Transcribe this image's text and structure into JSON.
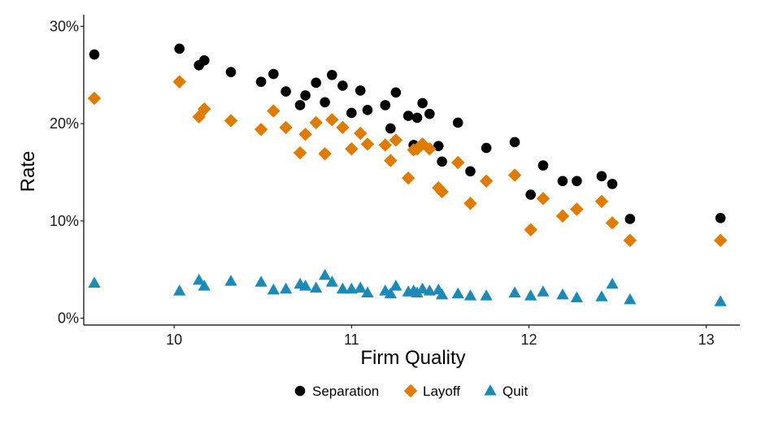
{
  "chart_data": {
    "type": "scatter",
    "xlabel": "Firm Quality",
    "ylabel": "Rate",
    "xlim": [
      9.55,
      13.13
    ],
    "ylim": [
      -0.007,
      0.312
    ],
    "xticks": [
      {
        "value": 10,
        "label": "10"
      },
      {
        "value": 11,
        "label": "11"
      },
      {
        "value": 12,
        "label": "12"
      },
      {
        "value": 13,
        "label": "13"
      }
    ],
    "yticks": [
      {
        "value": 0.0,
        "label": "0%"
      },
      {
        "value": 0.1,
        "label": "10%"
      },
      {
        "value": 0.2,
        "label": "20%"
      },
      {
        "value": 0.3,
        "label": "30%"
      }
    ],
    "grid": false,
    "legend_position": "bottom",
    "series": [
      {
        "name": "Separation",
        "marker": "circle",
        "color": "#000000",
        "points": [
          [
            9.55,
            0.271
          ],
          [
            10.03,
            0.277
          ],
          [
            10.14,
            0.26
          ],
          [
            10.17,
            0.265
          ],
          [
            10.32,
            0.253
          ],
          [
            10.49,
            0.243
          ],
          [
            10.56,
            0.251
          ],
          [
            10.63,
            0.233
          ],
          [
            10.71,
            0.219
          ],
          [
            10.74,
            0.229
          ],
          [
            10.8,
            0.242
          ],
          [
            10.85,
            0.222
          ],
          [
            10.89,
            0.25
          ],
          [
            10.95,
            0.239
          ],
          [
            11.0,
            0.211
          ],
          [
            11.05,
            0.234
          ],
          [
            11.09,
            0.214
          ],
          [
            11.19,
            0.219
          ],
          [
            11.22,
            0.195
          ],
          [
            11.25,
            0.232
          ],
          [
            11.32,
            0.208
          ],
          [
            11.35,
            0.178
          ],
          [
            11.37,
            0.206
          ],
          [
            11.4,
            0.221
          ],
          [
            11.44,
            0.21
          ],
          [
            11.49,
            0.177
          ],
          [
            11.51,
            0.161
          ],
          [
            11.6,
            0.201
          ],
          [
            11.67,
            0.151
          ],
          [
            11.76,
            0.175
          ],
          [
            11.92,
            0.181
          ],
          [
            12.01,
            0.127
          ],
          [
            12.08,
            0.157
          ],
          [
            12.19,
            0.141
          ],
          [
            12.27,
            0.141
          ],
          [
            12.41,
            0.146
          ],
          [
            12.47,
            0.138
          ],
          [
            12.57,
            0.102
          ],
          [
            13.08,
            0.103
          ]
        ]
      },
      {
        "name": "Layoff",
        "marker": "diamond",
        "color": "#E07B00",
        "points": [
          [
            9.55,
            0.226
          ],
          [
            10.03,
            0.243
          ],
          [
            10.14,
            0.207
          ],
          [
            10.17,
            0.215
          ],
          [
            10.32,
            0.203
          ],
          [
            10.49,
            0.194
          ],
          [
            10.56,
            0.213
          ],
          [
            10.63,
            0.196
          ],
          [
            10.71,
            0.17
          ],
          [
            10.74,
            0.189
          ],
          [
            10.8,
            0.201
          ],
          [
            10.85,
            0.169
          ],
          [
            10.89,
            0.204
          ],
          [
            10.95,
            0.196
          ],
          [
            11.0,
            0.174
          ],
          [
            11.05,
            0.19
          ],
          [
            11.09,
            0.179
          ],
          [
            11.19,
            0.178
          ],
          [
            11.22,
            0.162
          ],
          [
            11.25,
            0.183
          ],
          [
            11.32,
            0.144
          ],
          [
            11.35,
            0.173
          ],
          [
            11.37,
            0.174
          ],
          [
            11.4,
            0.179
          ],
          [
            11.44,
            0.174
          ],
          [
            11.49,
            0.134
          ],
          [
            11.51,
            0.13
          ],
          [
            11.6,
            0.16
          ],
          [
            11.67,
            0.118
          ],
          [
            11.76,
            0.141
          ],
          [
            11.92,
            0.147
          ],
          [
            12.01,
            0.091
          ],
          [
            12.08,
            0.123
          ],
          [
            12.19,
            0.105
          ],
          [
            12.27,
            0.112
          ],
          [
            12.41,
            0.12
          ],
          [
            12.47,
            0.098
          ],
          [
            12.57,
            0.08
          ],
          [
            13.08,
            0.08
          ]
        ]
      },
      {
        "name": "Quit",
        "marker": "triangle",
        "color": "#1A8BB8",
        "points": [
          [
            9.55,
            0.036
          ],
          [
            10.03,
            0.028
          ],
          [
            10.14,
            0.039
          ],
          [
            10.17,
            0.033
          ],
          [
            10.32,
            0.038
          ],
          [
            10.49,
            0.037
          ],
          [
            10.56,
            0.029
          ],
          [
            10.63,
            0.03
          ],
          [
            10.71,
            0.035
          ],
          [
            10.74,
            0.033
          ],
          [
            10.8,
            0.031
          ],
          [
            10.85,
            0.044
          ],
          [
            10.89,
            0.037
          ],
          [
            10.95,
            0.03
          ],
          [
            11.0,
            0.03
          ],
          [
            11.05,
            0.031
          ],
          [
            11.09,
            0.026
          ],
          [
            11.19,
            0.028
          ],
          [
            11.22,
            0.025
          ],
          [
            11.25,
            0.033
          ],
          [
            11.32,
            0.027
          ],
          [
            11.35,
            0.028
          ],
          [
            11.37,
            0.026
          ],
          [
            11.4,
            0.03
          ],
          [
            11.44,
            0.028
          ],
          [
            11.49,
            0.029
          ],
          [
            11.51,
            0.024
          ],
          [
            11.6,
            0.025
          ],
          [
            11.67,
            0.023
          ],
          [
            11.76,
            0.023
          ],
          [
            11.92,
            0.026
          ],
          [
            12.01,
            0.023
          ],
          [
            12.08,
            0.027
          ],
          [
            12.19,
            0.024
          ],
          [
            12.27,
            0.021
          ],
          [
            12.41,
            0.022
          ],
          [
            12.47,
            0.035
          ],
          [
            12.57,
            0.019
          ],
          [
            13.08,
            0.017
          ]
        ]
      }
    ]
  }
}
